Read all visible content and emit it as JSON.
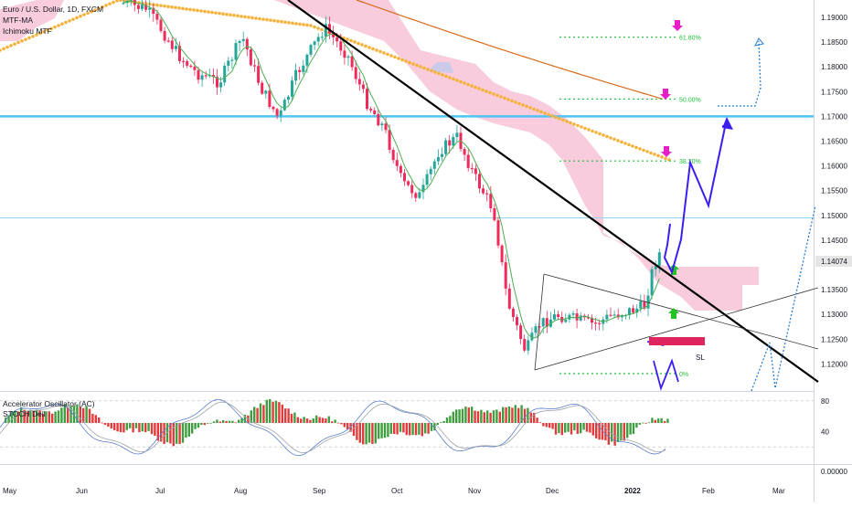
{
  "title": "Euro / U.S. Dollar, 1D, FXCM",
  "indicators": [
    "MTF-MA",
    "Ichimoku MTF"
  ],
  "osc_indicators": [
    "Accelerator Oscillator (AC)",
    "STOCH Dell"
  ],
  "price_axis_labels": [
    "1.19000",
    "1.18500",
    "1.18000",
    "1.17500",
    "1.17000",
    "1.16500",
    "1.16000",
    "1.15500",
    "1.15000",
    "1.14500",
    "1.13500",
    "1.13000",
    "1.12500",
    "1.12000"
  ],
  "current_price": "1.14074",
  "osc_axis_labels": [
    "80",
    "40",
    "0.00000"
  ],
  "month_labels": [
    "May",
    "Jun",
    "Jul",
    "Aug",
    "Sep",
    "Oct",
    "Nov",
    "Dec",
    "2022",
    "Feb",
    "Mar"
  ],
  "fib_labels": [
    "61.80%",
    "50.00%",
    "38.20%",
    "0%"
  ],
  "sl_label": "SL",
  "colors": {
    "bull": "#26a69a",
    "bear": "#ef2b5b",
    "cloud": "#f7c3d6",
    "ma_orange_dotted": "#f5b13a",
    "ma_brown": "#d76b1c",
    "trend_black": "#000000",
    "hline_blue": "#4fc3f7",
    "projection": "#3b1ff0",
    "projection_dotted": "#2a7fd4",
    "fib": "#1fbf3a",
    "arrow_magenta": "#e81ec8",
    "arrow_green": "#22c322",
    "sl_box": "#e0245e",
    "price_tag": "#e5e5e5"
  },
  "chart_data": {
    "type": "candlestick",
    "title": "Euro / U.S. Dollar, 1D, FXCM",
    "x_range": [
      "2021-05",
      "2022-03"
    ],
    "y_range": [
      1.192,
      1.1985
    ],
    "series_overview": [
      {
        "period": "Jun",
        "approx_close": 1.19
      },
      {
        "period": "Jul",
        "approx_close": 1.185
      },
      {
        "period": "Aug",
        "approx_close": 1.175
      },
      {
        "period": "Sep",
        "approx_close": 1.18
      },
      {
        "period": "Oct",
        "approx_close": 1.16
      },
      {
        "period": "Nov",
        "approx_close": 1.13
      },
      {
        "period": "Dec",
        "approx_close": 1.133
      },
      {
        "period": "Jan 2022",
        "approx_close": 1.1407
      }
    ],
    "horizontal_levels": [
      1.17,
      1.1495
    ],
    "fibonacci": [
      {
        "label": "61.80%",
        "value": 1.186
      },
      {
        "label": "50.00%",
        "value": 1.1735
      },
      {
        "label": "38.20%",
        "value": 1.161
      },
      {
        "label": "0%",
        "value": 1.1195
      }
    ],
    "osc_levels": [
      80,
      40,
      0
    ]
  }
}
